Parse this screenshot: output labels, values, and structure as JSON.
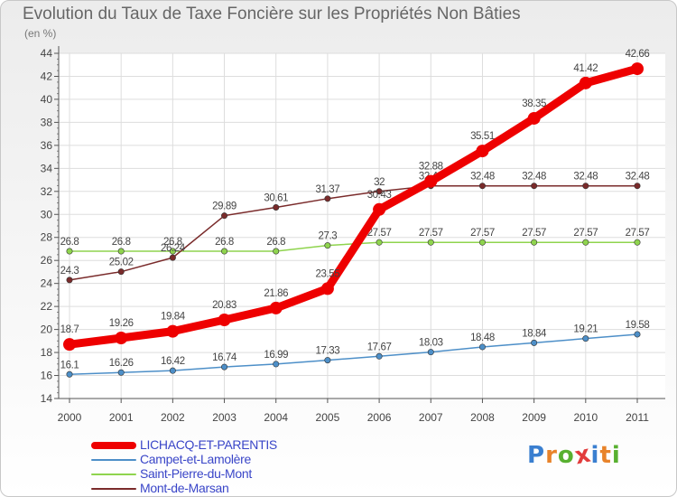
{
  "title": "Evolution du Taux de Taxe Foncière sur les Propriétés Non Bâties",
  "unit_label": "(en %)",
  "brand": {
    "text": "Proxiti",
    "letter_colors": [
      "#3a7fd0",
      "#e8832a",
      "#58b030",
      "#e23c3c",
      "#3a7fd0",
      "#e8832a",
      "#58b030"
    ]
  },
  "chart_data": {
    "type": "line",
    "categories": [
      "2000",
      "2001",
      "2002",
      "2003",
      "2004",
      "2005",
      "2006",
      "2007",
      "2008",
      "2009",
      "2010",
      "2011"
    ],
    "ylim": [
      14,
      44
    ],
    "ticks": [
      "14",
      "16",
      "18",
      "20",
      "22",
      "24",
      "26",
      "28",
      "30",
      "32",
      "34",
      "36",
      "38",
      "40",
      "42",
      "44"
    ],
    "grid": true,
    "legend_position": "bottom-left",
    "series": [
      {
        "name": "LICHACQ-ET-PARENTIS",
        "color": "#ee0000",
        "emphasis": true,
        "values": [
          18.7,
          19.26,
          19.84,
          20.83,
          21.86,
          23.55,
          30.43,
          32.88,
          35.51,
          38.35,
          41.42,
          42.66
        ],
        "labels": [
          "18.7",
          "19.26",
          "19.84",
          "20.83",
          "21.86",
          "23.55",
          "30.43",
          "32.88",
          "35.51",
          "38.35",
          "41.42",
          "42.66"
        ]
      },
      {
        "name": "Campet-et-Lamolère",
        "color": "#4d8fc8",
        "emphasis": false,
        "values": [
          16.1,
          16.26,
          16.42,
          16.74,
          16.99,
          17.33,
          17.67,
          18.03,
          18.48,
          18.84,
          19.21,
          19.58
        ],
        "labels": [
          "16.1",
          "16.26",
          "16.42",
          "16.74",
          "16.99",
          "17.33",
          "17.67",
          "18.03",
          "18.48",
          "18.84",
          "19.21",
          "19.58"
        ]
      },
      {
        "name": "Saint-Pierre-du-Mont",
        "color": "#8fd44e",
        "emphasis": false,
        "values": [
          26.8,
          26.8,
          26.8,
          26.8,
          26.8,
          27.3,
          27.57,
          27.57,
          27.57,
          27.57,
          27.57,
          27.57
        ],
        "labels": [
          "26.8",
          "26.8",
          "26.8",
          "26.8",
          "26.8",
          "27.3",
          "27.57",
          "27.57",
          "27.57",
          "27.57",
          "27.57",
          "27.57"
        ]
      },
      {
        "name": "Mont-de-Marsan",
        "color": "#7a2b2b",
        "emphasis": false,
        "values": [
          24.3,
          25.02,
          26.24,
          29.89,
          30.61,
          31.37,
          32,
          32.48,
          32.48,
          32.48,
          32.48,
          32.48
        ],
        "labels": [
          "24.3",
          "25.02",
          "26.24",
          "29.89",
          "30.61",
          "31.37",
          "32",
          "32.48",
          "32.48",
          "32.48",
          "32.48",
          "32.48"
        ]
      }
    ]
  }
}
